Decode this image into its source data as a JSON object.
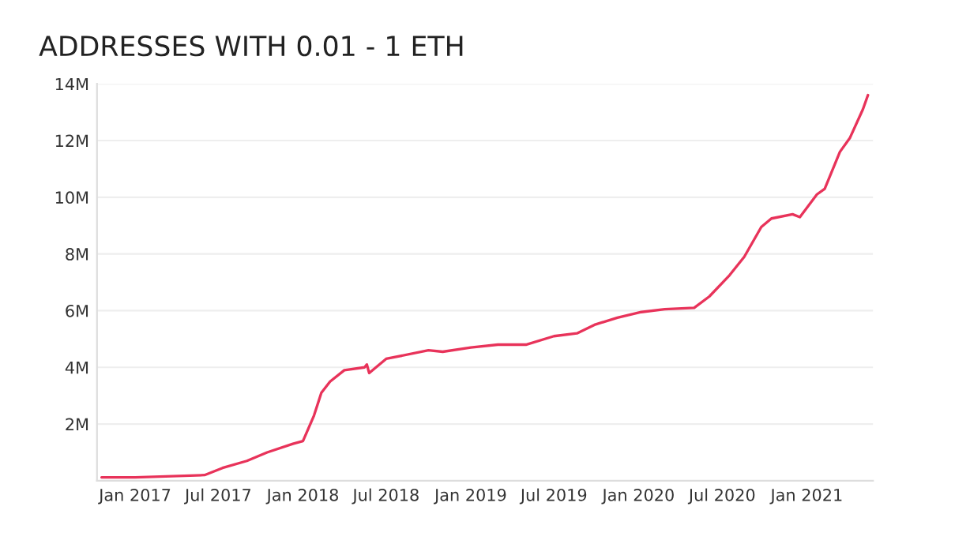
{
  "chart_data": {
    "type": "line",
    "title": "ADDRESSES WITH 0.01 - 1 ETH",
    "x": [
      "2016-10-20",
      "2017-01-01",
      "2017-06-01",
      "2017-07-10",
      "2017-09-01",
      "2017-10-15",
      "2017-12-10",
      "2018-01-01",
      "2018-01-25",
      "2018-02-10",
      "2018-03-01",
      "2018-04-01",
      "2018-05-15",
      "2018-05-20",
      "2018-05-25",
      "2018-07-01",
      "2018-10-01",
      "2018-11-01",
      "2019-01-01",
      "2019-03-01",
      "2019-05-01",
      "2019-07-01",
      "2019-08-20",
      "2019-09-27",
      "2019-11-16",
      "2020-01-07",
      "2020-02-27",
      "2020-05-01",
      "2020-06-03",
      "2020-07-17",
      "2020-08-18",
      "2020-09-24",
      "2020-10-16",
      "2020-12-01",
      "2020-12-17",
      "2021-01-23",
      "2021-02-09",
      "2021-03-14",
      "2021-04-05",
      "2021-05-03",
      "2021-05-14"
    ],
    "series": [
      {
        "color": "#e8335a",
        "values": [
          120000,
          120000,
          200000,
          450000,
          700000,
          1000000,
          1300000,
          1400000,
          2300000,
          3100000,
          3500000,
          3900000,
          4000000,
          4100000,
          3800000,
          4300000,
          4600000,
          4550000,
          4700000,
          4800000,
          4800000,
          5100000,
          5200000,
          5500000,
          5750000,
          5950000,
          6050000,
          6100000,
          6500000,
          7250000,
          7900000,
          8950000,
          9250000,
          9400000,
          9300000,
          10100000,
          10300000,
          11600000,
          12100000,
          13100000,
          13600000
        ]
      }
    ],
    "xlim": [
      "2016-10-10",
      "2021-05-25"
    ],
    "xticks": [
      {
        "value": "2017-01-01",
        "label": "Jan 2017"
      },
      {
        "value": "2017-07-01",
        "label": "Jul 2017"
      },
      {
        "value": "2018-01-01",
        "label": "Jan 2018"
      },
      {
        "value": "2018-07-01",
        "label": "Jul 2018"
      },
      {
        "value": "2019-01-01",
        "label": "Jan 2019"
      },
      {
        "value": "2019-07-01",
        "label": "Jul 2019"
      },
      {
        "value": "2020-01-01",
        "label": "Jan 2020"
      },
      {
        "value": "2020-07-01",
        "label": "Jul 2020"
      },
      {
        "value": "2021-01-01",
        "label": "Jan 2021"
      }
    ],
    "ylim": [
      0,
      14000000
    ],
    "yticks": [
      {
        "value": 2000000,
        "label": "2M"
      },
      {
        "value": 4000000,
        "label": "4M"
      },
      {
        "value": 6000000,
        "label": "6M"
      },
      {
        "value": 8000000,
        "label": "8M"
      },
      {
        "value": 10000000,
        "label": "10M"
      },
      {
        "value": 12000000,
        "label": "12M"
      },
      {
        "value": 14000000,
        "label": "14M"
      }
    ],
    "grid": "y",
    "marker": "none",
    "line_style": "solid"
  }
}
